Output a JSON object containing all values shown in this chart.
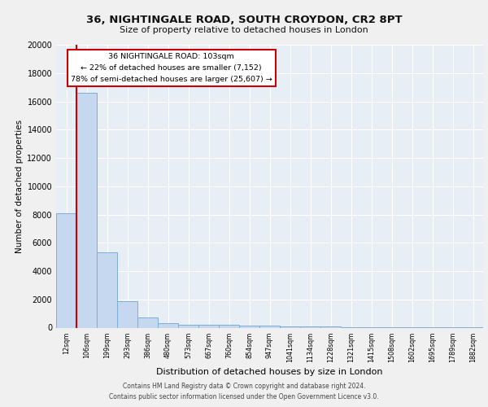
{
  "title1": "36, NIGHTINGALE ROAD, SOUTH CROYDON, CR2 8PT",
  "title2": "Size of property relative to detached houses in London",
  "xlabel": "Distribution of detached houses by size in London",
  "ylabel": "Number of detached properties",
  "categories": [
    "12sqm",
    "106sqm",
    "199sqm",
    "293sqm",
    "386sqm",
    "480sqm",
    "573sqm",
    "667sqm",
    "760sqm",
    "854sqm",
    "947sqm",
    "1041sqm",
    "1134sqm",
    "1228sqm",
    "1321sqm",
    "1415sqm",
    "1508sqm",
    "1602sqm",
    "1695sqm",
    "1789sqm",
    "1882sqm"
  ],
  "values": [
    8100,
    16600,
    5300,
    1850,
    700,
    300,
    230,
    200,
    180,
    170,
    130,
    100,
    80,
    60,
    50,
    40,
    30,
    25,
    20,
    15,
    10
  ],
  "bar_color": "#c5d8f0",
  "bar_edge_color": "#7bafd4",
  "vline_color": "#cc0000",
  "annotation_text": "36 NIGHTINGALE ROAD: 103sqm\n← 22% of detached houses are smaller (7,152)\n78% of semi-detached houses are larger (25,607) →",
  "annotation_box_color": "#ffffff",
  "annotation_box_edge": "#cc0000",
  "plot_bg_color": "#e8eef6",
  "fig_bg_color": "#f0f0f0",
  "grid_color": "#ffffff",
  "ylim": [
    0,
    20000
  ],
  "yticks": [
    0,
    2000,
    4000,
    6000,
    8000,
    10000,
    12000,
    14000,
    16000,
    18000,
    20000
  ],
  "footer1": "Contains HM Land Registry data © Crown copyright and database right 2024.",
  "footer2": "Contains public sector information licensed under the Open Government Licence v3.0."
}
